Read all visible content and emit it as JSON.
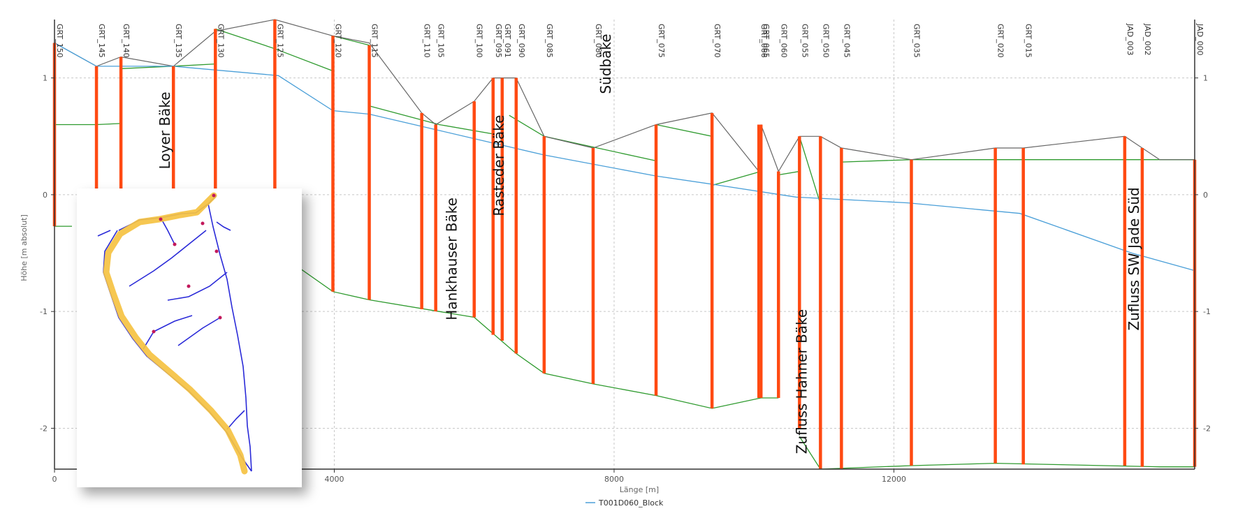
{
  "chart_data": {
    "type": "line",
    "xlabel": "Länge [m]",
    "ylabel": "Höhe [m absolut]",
    "xlim": [
      0,
      16300
    ],
    "ylim": [
      -2.35,
      1.5
    ],
    "x_ticks": [
      0,
      4000,
      8000,
      12000
    ],
    "y_ticks": [
      1,
      0,
      -1,
      -2
    ],
    "grid": true,
    "legend": "bottom-center",
    "series": [
      {
        "name": "T001D060_Block",
        "color": "#4a9fd8",
        "points": [
          [
            0,
            1.3
          ],
          [
            600,
            1.1
          ],
          [
            1700,
            1.1
          ],
          [
            3200,
            1.02
          ],
          [
            3980,
            0.72
          ],
          [
            4500,
            0.69
          ],
          [
            5500,
            0.55
          ],
          [
            7000,
            0.34
          ],
          [
            8600,
            0.16
          ],
          [
            9400,
            0.09
          ],
          [
            10600,
            -0.02
          ],
          [
            12200,
            -0.07
          ],
          [
            13800,
            -0.16
          ],
          [
            15400,
            -0.5
          ],
          [
            16300,
            -0.65
          ]
        ]
      }
    ],
    "upper_line": {
      "color": "#666666",
      "points": [
        [
          0,
          1.3
        ],
        [
          600,
          1.1
        ],
        [
          950,
          1.18
        ],
        [
          1700,
          1.1
        ],
        [
          2300,
          1.4
        ],
        [
          3150,
          1.5
        ],
        [
          3980,
          1.36
        ],
        [
          4500,
          1.3
        ],
        [
          5250,
          0.7
        ],
        [
          5450,
          0.6
        ],
        [
          6000,
          0.8
        ],
        [
          6270,
          1.0
        ],
        [
          6600,
          1.0
        ],
        [
          7000,
          0.5
        ],
        [
          7700,
          0.4
        ],
        [
          8600,
          0.6
        ],
        [
          9400,
          0.7
        ],
        [
          10070,
          0.2
        ],
        [
          10100,
          0.6
        ],
        [
          10350,
          0.2
        ],
        [
          10650,
          0.5
        ],
        [
          10950,
          0.5
        ],
        [
          11250,
          0.4
        ],
        [
          12250,
          0.3
        ],
        [
          13450,
          0.4
        ],
        [
          13850,
          0.4
        ],
        [
          15300,
          0.5
        ],
        [
          15800,
          0.3
        ],
        [
          16300,
          0.3
        ]
      ]
    },
    "green_top": {
      "color": "#2e9a2e",
      "segments": [
        [
          [
            0,
            0.6
          ],
          [
            600,
            0.6
          ],
          [
            950,
            0.61
          ]
        ],
        [
          [
            950,
            1.08
          ],
          [
            1700,
            1.1
          ],
          [
            2300,
            1.12
          ]
        ],
        [
          [
            2300,
            1.42
          ],
          [
            3150,
            1.25
          ],
          [
            3980,
            1.06
          ]
        ],
        [
          [
            3980,
            1.36
          ],
          [
            4500,
            1.28
          ]
        ],
        [
          [
            4500,
            0.76
          ],
          [
            5500,
            0.6
          ],
          [
            6270,
            0.52
          ]
        ],
        [
          [
            6500,
            0.68
          ],
          [
            7000,
            0.5
          ],
          [
            8600,
            0.29
          ]
        ],
        [
          [
            8600,
            0.6
          ],
          [
            9400,
            0.5
          ]
        ],
        [
          [
            9400,
            0.08
          ],
          [
            10100,
            0.2
          ]
        ],
        [
          [
            10350,
            0.17
          ],
          [
            10650,
            0.2
          ]
        ],
        [
          [
            10650,
            0.5
          ],
          [
            10950,
            -0.08
          ]
        ],
        [
          [
            11250,
            0.28
          ],
          [
            12250,
            0.3
          ],
          [
            15800,
            0.3
          ],
          [
            16300,
            0.3
          ]
        ]
      ]
    },
    "green_bottom": {
      "color": "#2e9a2e",
      "segments": [
        [
          [
            0,
            -0.27
          ],
          [
            250,
            -0.27
          ]
        ],
        [
          [
            3150,
            -0.48
          ],
          [
            3980,
            -0.83
          ],
          [
            4500,
            -0.9
          ],
          [
            5500,
            -1.0
          ],
          [
            6000,
            -1.05
          ],
          [
            6600,
            -1.36
          ],
          [
            7000,
            -1.53
          ],
          [
            7700,
            -1.62
          ],
          [
            8600,
            -1.72
          ],
          [
            9400,
            -1.83
          ],
          [
            10100,
            -1.74
          ],
          [
            10350,
            -1.74
          ]
        ],
        [
          [
            10650,
            -2.07
          ],
          [
            10950,
            -2.35
          ],
          [
            12250,
            -2.32
          ],
          [
            13450,
            -2.3
          ],
          [
            15800,
            -2.33
          ],
          [
            16300,
            -2.33
          ]
        ]
      ]
    },
    "sections": [
      {
        "label": "GRT_150",
        "x": 0,
        "top": 1.3,
        "bottom": -0.27
      },
      {
        "label": "GRT_145",
        "x": 600,
        "top": 1.1,
        "bottom": -0.27
      },
      {
        "label": "GRT_140",
        "x": 950,
        "top": 1.18,
        "bottom": -0.27
      },
      {
        "label": "GRT_135",
        "x": 1700,
        "top": 1.1,
        "bottom": -0.27
      },
      {
        "label": "GRT_130",
        "x": 2300,
        "top": 1.42,
        "bottom": -0.3
      },
      {
        "label": "GRT_125",
        "x": 3150,
        "top": 1.5,
        "bottom": -0.48
      },
      {
        "label": "GRT_120",
        "x": 3980,
        "top": 1.36,
        "bottom": -0.83
      },
      {
        "label": "GRT_115",
        "x": 4500,
        "top": 1.28,
        "bottom": -0.9
      },
      {
        "label": "GRT_110",
        "x": 5250,
        "top": 0.7,
        "bottom": -0.98
      },
      {
        "label": "GRT_105",
        "x": 5450,
        "top": 0.6,
        "bottom": -1.0
      },
      {
        "label": "GRT_100",
        "x": 6000,
        "top": 0.8,
        "bottom": -1.05
      },
      {
        "label": "GRT_095",
        "x": 6270,
        "top": 1.0,
        "bottom": -1.2
      },
      {
        "label": "GRT_091",
        "x": 6400,
        "top": 1.0,
        "bottom": -1.25
      },
      {
        "label": "GRT_090",
        "x": 6600,
        "top": 1.0,
        "bottom": -1.36
      },
      {
        "label": "GRT_085",
        "x": 7000,
        "top": 0.5,
        "bottom": -1.53
      },
      {
        "label": "GRT_080",
        "x": 7700,
        "top": 0.4,
        "bottom": -1.62
      },
      {
        "label": "GRT_075",
        "x": 8600,
        "top": 0.6,
        "bottom": -1.72
      },
      {
        "label": "GRT_070",
        "x": 9400,
        "top": 0.7,
        "bottom": -1.83
      },
      {
        "label": "GRT_066",
        "x": 10070,
        "top": 0.6,
        "bottom": -1.74
      },
      {
        "label": "GRT_065",
        "x": 10100,
        "top": 0.6,
        "bottom": -1.74
      },
      {
        "label": "GRT_060",
        "x": 10350,
        "top": 0.2,
        "bottom": -1.74
      },
      {
        "label": "GRT_055",
        "x": 10650,
        "top": 0.5,
        "bottom": -2.0
      },
      {
        "label": "GRT_050",
        "x": 10950,
        "top": 0.5,
        "bottom": -2.35
      },
      {
        "label": "GRT_045",
        "x": 11250,
        "top": 0.4,
        "bottom": -2.35
      },
      {
        "label": "GRT_035",
        "x": 12250,
        "top": 0.3,
        "bottom": -2.32
      },
      {
        "label": "GRT_020",
        "x": 13450,
        "top": 0.4,
        "bottom": -2.3
      },
      {
        "label": "GRT_015",
        "x": 13850,
        "top": 0.4,
        "bottom": -2.31
      },
      {
        "label": "JAD_003",
        "x": 15300,
        "top": 0.5,
        "bottom": -2.32
      },
      {
        "label": "JAD_002",
        "x": 15550,
        "top": 0.4,
        "bottom": -2.33
      },
      {
        "label": "JAD_000",
        "x": 16300,
        "top": 0.3,
        "bottom": -2.33
      }
    ],
    "annotations": [
      {
        "text": "Loyer Bäke",
        "x": 1650,
        "y": 0.55
      },
      {
        "text": "Südbäke",
        "x": 7950,
        "y": 1.12
      },
      {
        "text": "Hankhauser Bäke",
        "x": 5750,
        "y": -0.55
      },
      {
        "text": "Rasteder Bäke",
        "x": 6420,
        "y": 0.25
      },
      {
        "text": "Zufluss Hahner Bäke",
        "x": 10750,
        "y": -1.6
      },
      {
        "text": "Zufluss SW Jade Süd",
        "x": 15500,
        "y": -0.55
      }
    ]
  }
}
